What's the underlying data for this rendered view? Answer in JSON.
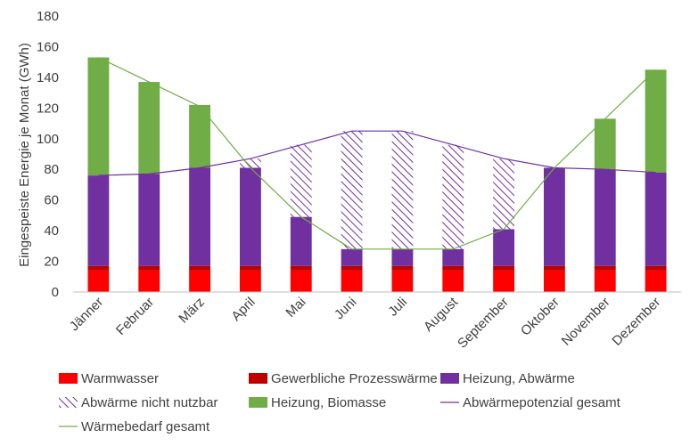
{
  "chart_data": {
    "type": "bar",
    "stacked": true,
    "ylabel": "Eingespeiste Energie je Monat (GWh)",
    "xlabel": "",
    "ylim": [
      0,
      180
    ],
    "yticks": [
      0,
      20,
      40,
      60,
      80,
      100,
      120,
      140,
      160,
      180
    ],
    "grid": false,
    "legend_position": "bottom",
    "categories": [
      "Jänner",
      "Februar",
      "März",
      "April",
      "Mai",
      "Juni",
      "Juli",
      "August",
      "September",
      "Oktober",
      "November",
      "Dezember"
    ],
    "series": [
      {
        "name": "Warmwasser",
        "kind": "bar",
        "color": "#ff0000",
        "values": [
          14,
          14,
          14,
          14,
          14,
          14,
          14,
          14,
          14,
          14,
          14,
          14
        ]
      },
      {
        "name": "Gewerbliche Prozesswärme",
        "kind": "bar",
        "color": "#c00000",
        "values": [
          3,
          3,
          3,
          3,
          3,
          3,
          3,
          3,
          3,
          3,
          3,
          3
        ]
      },
      {
        "name": "Heizung, Abwärme",
        "kind": "bar",
        "color": "#7030a0",
        "values": [
          59,
          60,
          64,
          64,
          32,
          11,
          11,
          11,
          24,
          64,
          63,
          61
        ]
      },
      {
        "name": "Abwärme nicht nutzbar",
        "kind": "bar",
        "color": "#7030a0",
        "pattern": "hatch",
        "values": [
          0,
          0,
          0,
          6,
          47,
          77,
          77,
          68,
          46,
          0,
          0,
          0
        ]
      },
      {
        "name": "Heizung, Biomasse",
        "kind": "bar",
        "color": "#70ad47",
        "values": [
          77,
          60,
          41,
          0,
          0,
          0,
          0,
          0,
          0,
          0,
          33,
          67
        ]
      },
      {
        "name": "Abwärmepotenzial gesamt",
        "kind": "line",
        "color": "#7030a0",
        "values": [
          76,
          77,
          81,
          87,
          96,
          105,
          105,
          96,
          87,
          81,
          80,
          78
        ]
      },
      {
        "name": "Wärmebedarf gesamt",
        "kind": "line",
        "color": "#70ad47",
        "values": [
          153,
          137,
          121,
          81,
          49,
          28,
          28,
          28,
          41,
          81,
          113,
          145
        ]
      }
    ]
  }
}
